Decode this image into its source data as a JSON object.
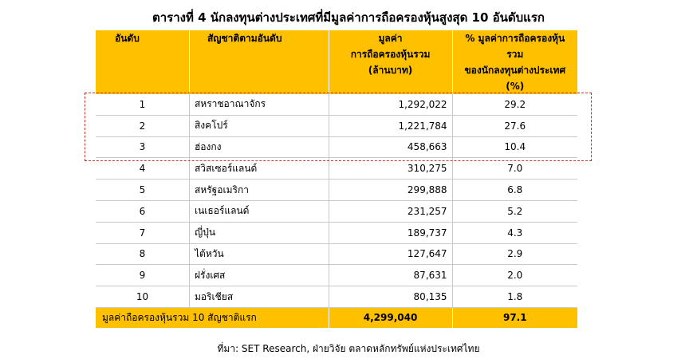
{
  "title": "ตารางที่ 4 นักลงทุนต่างประเทศที่มีมูลค่าการถือครองหุ้นสูงสุด 10 อันดับแรก",
  "headers": {
    "rank": "อันดับ",
    "country": "สัญชาติตามอันดับ",
    "value_l1": "มูลค่า",
    "value_l2": "การถือครองหุ้นรวม",
    "value_l3": "(ล้านบาท)",
    "pct_l1": "% มูลค่าการถือครองหุ้นรวม",
    "pct_l2": "ของนักลงทุนต่างประเทศ",
    "pct_l3": "(%)"
  },
  "rows": [
    {
      "rank": "1",
      "country": "สหราชอาณาจักร",
      "value": "1,292,022",
      "pct": "29.2"
    },
    {
      "rank": "2",
      "country": "สิงคโปร์",
      "value": "1,221,784",
      "pct": "27.6"
    },
    {
      "rank": "3",
      "country": "ฮ่องกง",
      "value": "458,663",
      "pct": "10.4"
    },
    {
      "rank": "4",
      "country": "สวิสเซอร์แลนด์",
      "value": "310,275",
      "pct": "7.0"
    },
    {
      "rank": "5",
      "country": "สหรัฐอเมริกา",
      "value": "299,888",
      "pct": "6.8"
    },
    {
      "rank": "6",
      "country": "เนเธอร์แลนด์",
      "value": "231,257",
      "pct": "5.2"
    },
    {
      "rank": "7",
      "country": "ญี่ปุ่น",
      "value": "189,737",
      "pct": "4.3"
    },
    {
      "rank": "8",
      "country": "ไต้หวัน",
      "value": "127,647",
      "pct": "2.9"
    },
    {
      "rank": "9",
      "country": "ฝรั่งเศส",
      "value": "87,631",
      "pct": "2.0"
    },
    {
      "rank": "10",
      "country": "มอริเชียส",
      "value": "80,135",
      "pct": "1.8"
    }
  ],
  "total": {
    "label": "มูลค่าถือครองหุ้นรวม  10 สัญชาติแรก",
    "value": "4,299,040",
    "pct": "97.1"
  },
  "source": "ที่มา: SET Research, ฝ่ายวิจัย ตลาดหลักทรัพย์แห่งประเทศไทย",
  "colors": {
    "header_bg": "#ffc000",
    "highlight_border": "#c0392b"
  }
}
